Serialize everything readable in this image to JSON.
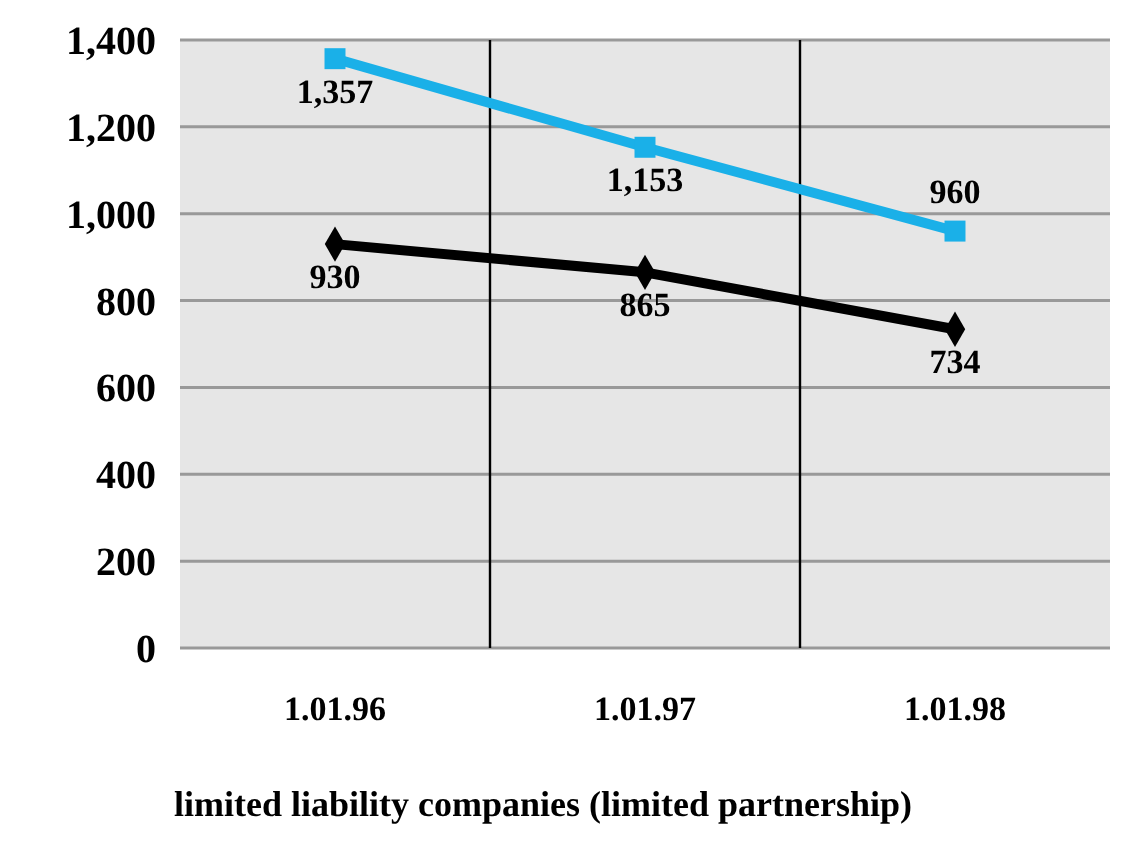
{
  "chart_data": {
    "type": "line",
    "categories": [
      "1.01.96",
      "1.01.97",
      "1.01.98"
    ],
    "series": [
      {
        "color": "#1ab0e8",
        "values": [
          1357,
          1153,
          960
        ],
        "value_labels": [
          "1,357",
          "1,153",
          "960"
        ],
        "marker": "square"
      },
      {
        "color": "#000000",
        "values": [
          930,
          865,
          734
        ],
        "value_labels": [
          "930",
          "865",
          "734"
        ],
        "marker": "diamond"
      }
    ],
    "ylim": [
      0,
      1400
    ],
    "yticks": [
      {
        "value": 0,
        "label": "0"
      },
      {
        "value": 200,
        "label": "200"
      },
      {
        "value": 400,
        "label": "400"
      },
      {
        "value": 600,
        "label": "600"
      },
      {
        "value": 800,
        "label": "800"
      },
      {
        "value": 1000,
        "label": "1,000"
      },
      {
        "value": 1200,
        "label": "1,200"
      },
      {
        "value": 1400,
        "label": "1,400"
      }
    ],
    "grid": true,
    "xlabel": "limited liability companies (limited partnership)"
  }
}
